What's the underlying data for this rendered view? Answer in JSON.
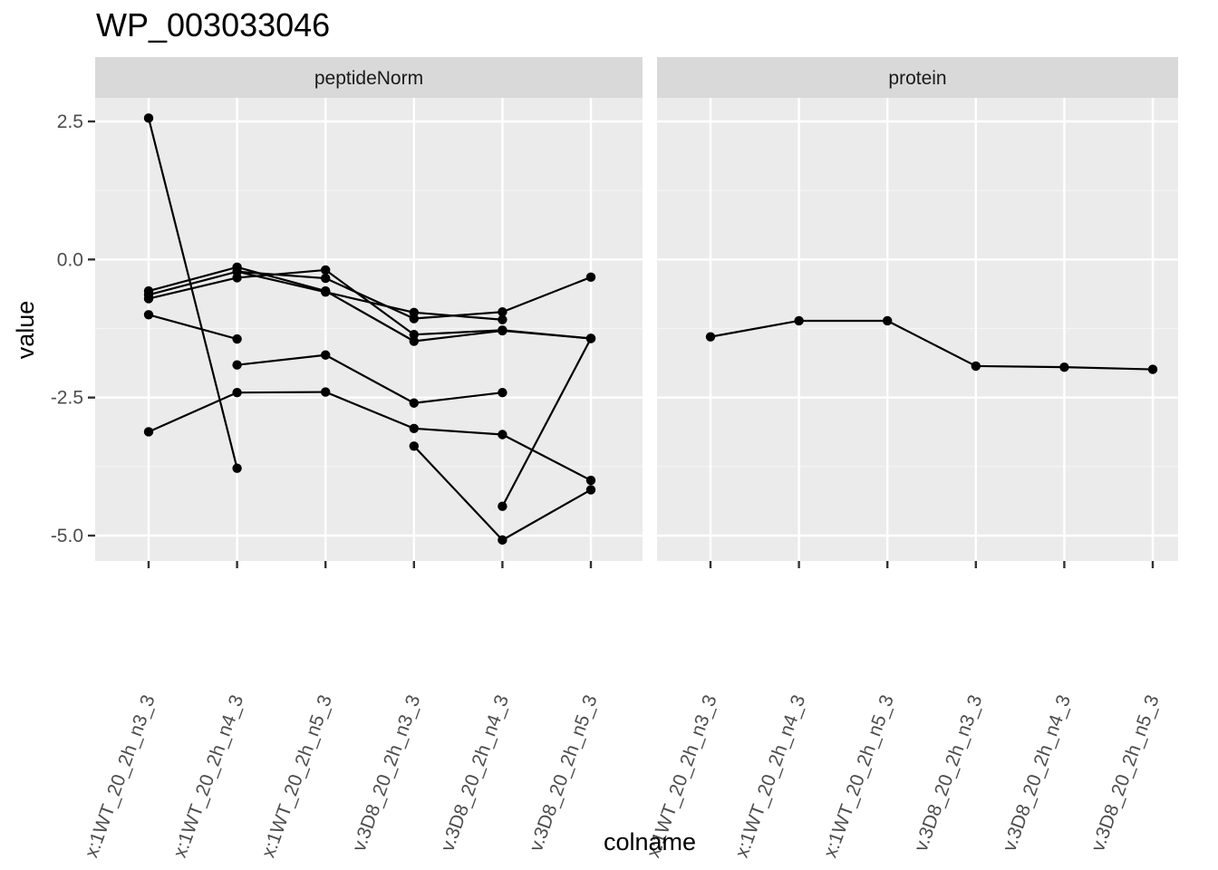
{
  "chart_data": {
    "type": "line",
    "title": "WP_003033046",
    "xlabel": "colname",
    "ylabel": "value",
    "ylim": [
      -5.5,
      3.0
    ],
    "y_ticks": [
      2.5,
      0.0,
      -2.5,
      -5.0
    ],
    "y_tick_labels": [
      "2.5",
      "0.0",
      "-2.5",
      "-5.0"
    ],
    "grid": true,
    "x_tick_labels": [
      "x:1WT_20_2h_n3_3",
      "x:1WT_20_2h_n4_3",
      "x:1WT_20_2h_n5_3",
      "v.3D8_20_2h_n3_3",
      "v.3D8_20_2h_n4_3",
      "v.3D8_20_2h_n5_3"
    ],
    "facets": [
      {
        "strip_label": "peptideNorm",
        "series": [
          {
            "values": [
              2.56,
              -3.78,
              null,
              null,
              null,
              null
            ]
          },
          {
            "values": [
              -0.57,
              -0.14,
              -0.57,
              -1.48,
              -1.29,
              -1.43
            ]
          },
          {
            "values": [
              -0.71,
              -0.33,
              -0.19,
              -1.36,
              -1.28,
              -1.43
            ]
          },
          {
            "values": [
              -0.64,
              -0.22,
              -0.34,
              -1.07,
              -0.95,
              -0.32
            ]
          },
          {
            "values": [
              null,
              -0.22,
              -0.59,
              -0.96,
              -1.09,
              null
            ]
          },
          {
            "values": [
              -1.0,
              -1.44,
              null,
              null,
              null,
              null
            ]
          },
          {
            "values": [
              null,
              -1.91,
              -1.73,
              -2.6,
              -2.41,
              null
            ]
          },
          {
            "values": [
              -3.12,
              -2.41,
              -2.4,
              -3.06,
              -3.17,
              -4.0
            ]
          },
          {
            "values": [
              null,
              null,
              null,
              -3.38,
              -5.08,
              -4.17
            ]
          },
          {
            "values": [
              null,
              null,
              null,
              null,
              -4.47,
              -1.43
            ]
          }
        ]
      },
      {
        "strip_label": "protein",
        "series": [
          {
            "values": [
              -1.4,
              -1.11,
              -1.11,
              -1.93,
              -1.95,
              -1.99
            ]
          }
        ]
      }
    ]
  }
}
